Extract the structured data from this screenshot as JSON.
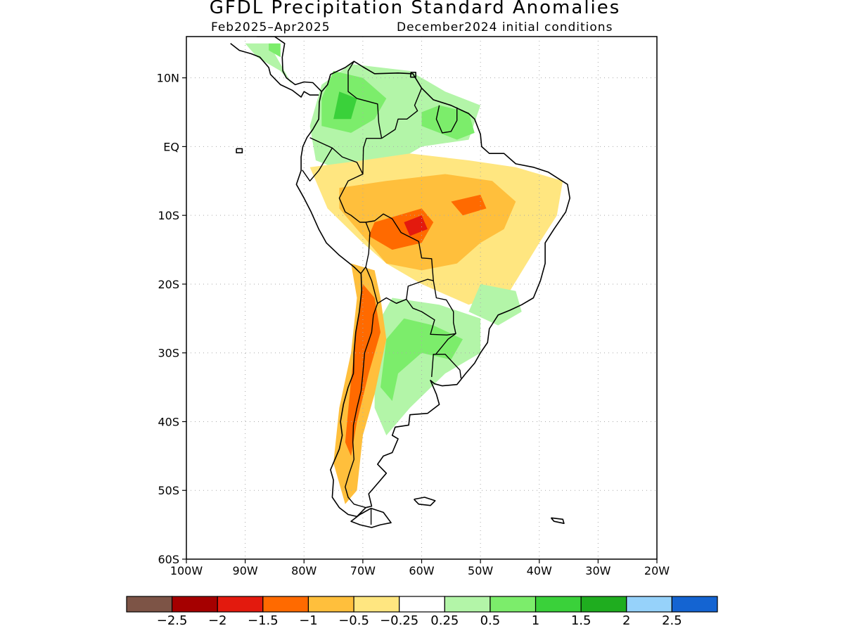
{
  "title": "GFDL Precipitation Standard Anomalies",
  "subtitle_left": "Feb2025–Apr2025",
  "subtitle_right": "December2024 initial conditions",
  "axes": {
    "lon_labels": [
      "100W",
      "90W",
      "80W",
      "70W",
      "60W",
      "50W",
      "40W",
      "30W",
      "20W"
    ],
    "lon_values": [
      -100,
      -90,
      -80,
      -70,
      -60,
      -50,
      -40,
      -30,
      -20
    ],
    "lat_labels": [
      "10N",
      "EQ",
      "10S",
      "20S",
      "30S",
      "40S",
      "50S",
      "60S"
    ],
    "lat_values": [
      10,
      0,
      -10,
      -20,
      -30,
      -40,
      -50,
      -60
    ],
    "lon_range": [
      -100,
      -20
    ],
    "lat_range": [
      -60,
      16
    ],
    "grid": true
  },
  "colorbar": {
    "colors": [
      "#7d5446",
      "#a50000",
      "#e31a0e",
      "#ff6a00",
      "#ffbf3c",
      "#ffe680",
      "#ffffff",
      "#b3f5a8",
      "#7ced6b",
      "#3ad13a",
      "#1fad1f",
      "#96d2fa",
      "#1464d2"
    ],
    "labels": [
      "−2.5",
      "−2",
      "−1.5",
      "−1",
      "−0.5",
      "−0.25",
      "0.25",
      "0.5",
      "1",
      "1.5",
      "2",
      "2.5"
    ]
  },
  "anomaly_regions": [
    {
      "name": "colombia-venezuela",
      "level": "0.5",
      "points": [
        [
          -78,
          -2
        ],
        [
          -72,
          -4
        ],
        [
          -66,
          -3
        ],
        [
          -60,
          0
        ],
        [
          -52,
          1
        ],
        [
          -50,
          6
        ],
        [
          -56,
          8
        ],
        [
          -62,
          11
        ],
        [
          -72,
          12
        ],
        [
          -77,
          9
        ],
        [
          -79,
          3
        ]
      ]
    },
    {
      "name": "colombia-wet-core",
      "level": "1",
      "points": [
        [
          -77,
          3
        ],
        [
          -72,
          2
        ],
        [
          -68,
          4
        ],
        [
          -66,
          7
        ],
        [
          -70,
          10
        ],
        [
          -75,
          11
        ],
        [
          -77,
          7
        ]
      ]
    },
    {
      "name": "colombia-strong-core",
      "level": "1.5",
      "points": [
        [
          -75,
          4
        ],
        [
          -72,
          4
        ],
        [
          -71,
          7
        ],
        [
          -74,
          8
        ]
      ]
    },
    {
      "name": "guiana-wet",
      "level": "1",
      "points": [
        [
          -60,
          3
        ],
        [
          -54,
          1
        ],
        [
          -51,
          2
        ],
        [
          -52,
          5
        ],
        [
          -57,
          6
        ],
        [
          -60,
          5
        ]
      ]
    },
    {
      "name": "central-america",
      "level": "0.5",
      "points": [
        [
          -88,
          13
        ],
        [
          -84,
          11
        ],
        [
          -82,
          9
        ],
        [
          -84,
          12
        ],
        [
          -86,
          15
        ],
        [
          -90,
          15
        ]
      ]
    },
    {
      "name": "central-america-core",
      "level": "1",
      "points": [
        [
          -86,
          14
        ],
        [
          -84,
          13
        ],
        [
          -84,
          15
        ],
        [
          -86,
          15
        ]
      ]
    },
    {
      "name": "amazon-dry",
      "level": "-0.25",
      "points": [
        [
          -79,
          -3
        ],
        [
          -70,
          -2
        ],
        [
          -62,
          -1
        ],
        [
          -52,
          -2
        ],
        [
          -44,
          -3
        ],
        [
          -36,
          -5
        ],
        [
          -37,
          -10
        ],
        [
          -40,
          -14
        ],
        [
          -45,
          -21
        ],
        [
          -52,
          -23
        ],
        [
          -60,
          -20
        ],
        [
          -66,
          -17
        ],
        [
          -70,
          -14
        ],
        [
          -76,
          -9
        ],
        [
          -78,
          -5
        ]
      ]
    },
    {
      "name": "amazon-dry-core",
      "level": "-0.5",
      "points": [
        [
          -74,
          -6
        ],
        [
          -66,
          -5
        ],
        [
          -56,
          -4
        ],
        [
          -48,
          -5
        ],
        [
          -44,
          -8
        ],
        [
          -46,
          -12
        ],
        [
          -50,
          -14
        ],
        [
          -54,
          -17
        ],
        [
          -60,
          -18
        ],
        [
          -66,
          -17
        ],
        [
          -70,
          -13
        ],
        [
          -74,
          -9
        ]
      ]
    },
    {
      "name": "bolivia-dry",
      "level": "-1",
      "points": [
        [
          -68,
          -11
        ],
        [
          -64,
          -10
        ],
        [
          -60,
          -9
        ],
        [
          -58,
          -11
        ],
        [
          -60,
          -14
        ],
        [
          -65,
          -15
        ],
        [
          -69,
          -13
        ]
      ]
    },
    {
      "name": "bolivia-strong",
      "level": "-1.5",
      "points": [
        [
          -63,
          -11
        ],
        [
          -60,
          -10
        ],
        [
          -59,
          -12
        ],
        [
          -62,
          -13
        ]
      ]
    },
    {
      "name": "brazil-dry",
      "level": "-1",
      "points": [
        [
          -55,
          -8
        ],
        [
          -50,
          -7
        ],
        [
          -49,
          -9
        ],
        [
          -53,
          -10
        ]
      ]
    },
    {
      "name": "brazil-east-wet",
      "level": "0.5",
      "points": [
        [
          -50,
          -20
        ],
        [
          -44,
          -21
        ],
        [
          -43,
          -24
        ],
        [
          -47,
          -26
        ],
        [
          -52,
          -24
        ]
      ]
    },
    {
      "name": "southeast-wet",
      "level": "0.5",
      "points": [
        [
          -65,
          -22
        ],
        [
          -57,
          -23
        ],
        [
          -50,
          -25
        ],
        [
          -50,
          -30
        ],
        [
          -56,
          -33
        ],
        [
          -62,
          -38
        ],
        [
          -66,
          -42
        ],
        [
          -68,
          -38
        ],
        [
          -68,
          -30
        ],
        [
          -67,
          -25
        ]
      ]
    },
    {
      "name": "southeast-wet-core",
      "level": "1",
      "points": [
        [
          -63,
          -25
        ],
        [
          -58,
          -26
        ],
        [
          -53,
          -28
        ],
        [
          -55,
          -31
        ],
        [
          -60,
          -30
        ],
        [
          -64,
          -33
        ],
        [
          -65,
          -37
        ],
        [
          -67,
          -35
        ],
        [
          -66,
          -28
        ]
      ]
    },
    {
      "name": "andes-dry",
      "level": "-0.5",
      "points": [
        [
          -72,
          -17
        ],
        [
          -68,
          -18
        ],
        [
          -67,
          -22
        ],
        [
          -66,
          -28
        ],
        [
          -68,
          -36
        ],
        [
          -70,
          -42
        ],
        [
          -71,
          -50
        ],
        [
          -73,
          -52
        ],
        [
          -75,
          -46
        ],
        [
          -74,
          -38
        ],
        [
          -72,
          -30
        ],
        [
          -71,
          -22
        ]
      ]
    },
    {
      "name": "andes-dry-core",
      "level": "-1",
      "points": [
        [
          -70,
          -20
        ],
        [
          -68,
          -22
        ],
        [
          -67,
          -27
        ],
        [
          -69,
          -33
        ],
        [
          -71,
          -40
        ],
        [
          -72,
          -45
        ],
        [
          -73,
          -43
        ],
        [
          -72,
          -34
        ],
        [
          -71,
          -26
        ]
      ]
    }
  ]
}
